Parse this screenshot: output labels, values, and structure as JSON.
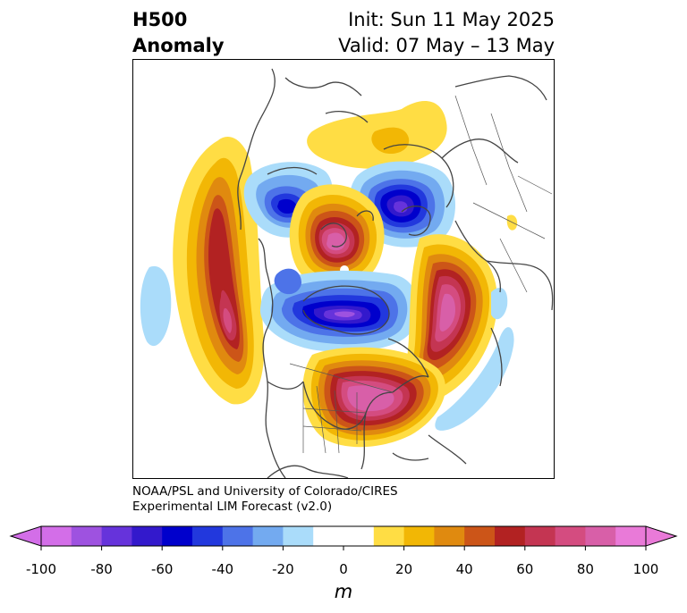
{
  "title": {
    "left_line1": "H500",
    "left_line2": "Anomaly",
    "right_line1": "Init: Sun 11 May 2025",
    "right_line2": "Valid: 07 May – 13 May"
  },
  "credit": {
    "line1": "NOAA/PSL and University of Colorado/CIRES",
    "line2": "Experimental LIM Forecast (v2.0)"
  },
  "colorbar": {
    "unit": "m",
    "ticks": [
      "-100",
      "-80",
      "-60",
      "-40",
      "-20",
      "0",
      "20",
      "40",
      "60",
      "80",
      "100"
    ],
    "colors": [
      "#d36ee8",
      "#9e52e0",
      "#6633db",
      "#3319cc",
      "#0000cc",
      "#2238dd",
      "#4d73e8",
      "#73aaf0",
      "#aadcfa",
      "#ffffff",
      "#ffffff",
      "#ffdd44",
      "#f2b705",
      "#e08a0f",
      "#cc5518",
      "#b22222",
      "#c43552",
      "#d44c80",
      "#d85fa8",
      "#e97ad8"
    ]
  },
  "map": {
    "projection": "polar stereographic, Northern Hemisphere",
    "field": "500 hPa geopotential height anomaly",
    "features": [
      "ridge over northeast Pacific",
      "ridge over central Canada",
      "ridge over eastern North America and western Atlantic",
      "ridge over Greenland and North Atlantic",
      "trough over Hudson Bay and northern Canada",
      "trough over Kara Sea",
      "trough over Chukchi Sea"
    ]
  }
}
